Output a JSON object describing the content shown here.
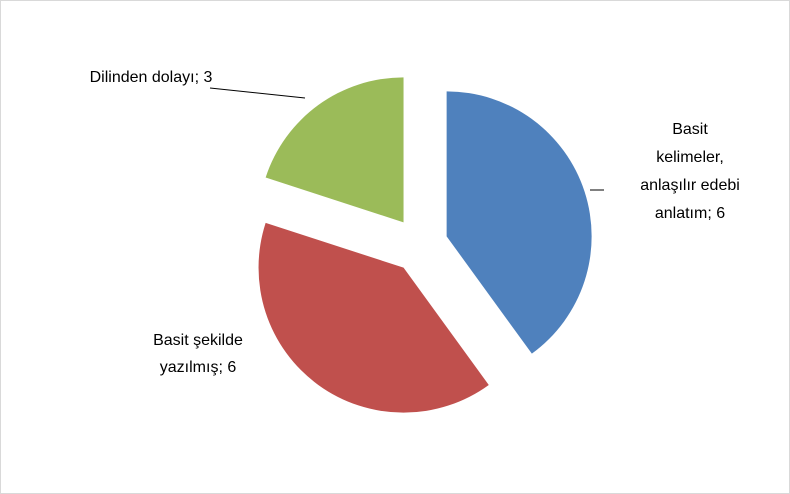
{
  "chart_data": {
    "type": "pie",
    "values": [
      6,
      6,
      3
    ],
    "value_labels": [
      [
        "Basit",
        "kelimeler,",
        "anlaşılır edebi",
        "anlatım; 6"
      ],
      [
        "Basit şekilde",
        "yazılmış; 6"
      ],
      [
        "Dilinden dolayı; 3"
      ]
    ],
    "colors": [
      "#4f81bd",
      "#c0504d",
      "#9bbb59"
    ],
    "exploded": true
  }
}
